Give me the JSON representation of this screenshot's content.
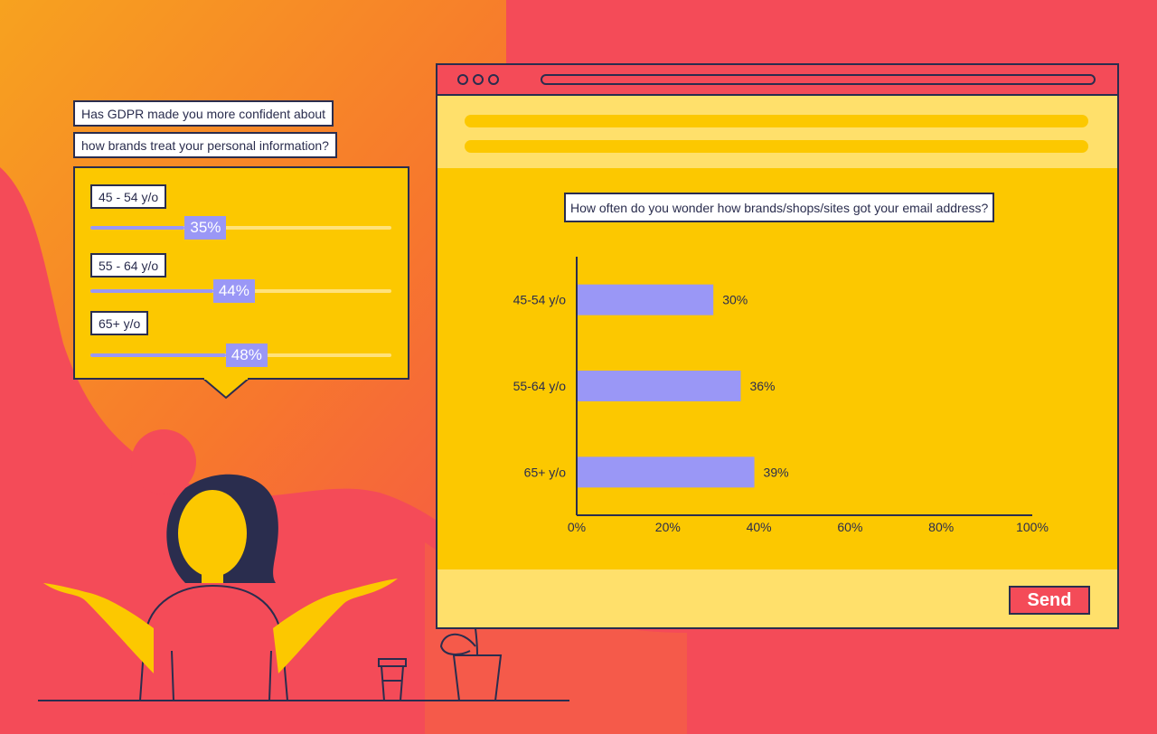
{
  "poll": {
    "question_line1": "Has GDPR made you more confident about",
    "question_line2": "how brands treat your personal information?",
    "items": [
      {
        "label": "45 - 54 y/o",
        "value": 35,
        "display": "35%"
      },
      {
        "label": "55 - 64 y/o",
        "value": 44,
        "display": "44%"
      },
      {
        "label": "65+ y/o",
        "value": 48,
        "display": "48%"
      }
    ]
  },
  "browser": {
    "send_label": "Send"
  },
  "colors": {
    "background": "#f44b58",
    "yellow": "#fcc800",
    "light_yellow": "#ffe06b",
    "orange": "#f7a21f",
    "navy": "#2a2d4e",
    "lavender": "#9a97f6"
  },
  "chart_data": {
    "type": "bar",
    "orientation": "horizontal",
    "title": "How often do you wonder how brands/shops/sites got your email address?",
    "categories": [
      "45-54 y/o",
      "55-64 y/o",
      "65+ y/o"
    ],
    "values": [
      30,
      36,
      39
    ],
    "value_labels": [
      "30%",
      "36%",
      "39%"
    ],
    "xlim": [
      0,
      100
    ],
    "xticks": [
      "0%",
      "20%",
      "40%",
      "60%",
      "80%",
      "100%"
    ],
    "grid": false,
    "legend": "none"
  }
}
